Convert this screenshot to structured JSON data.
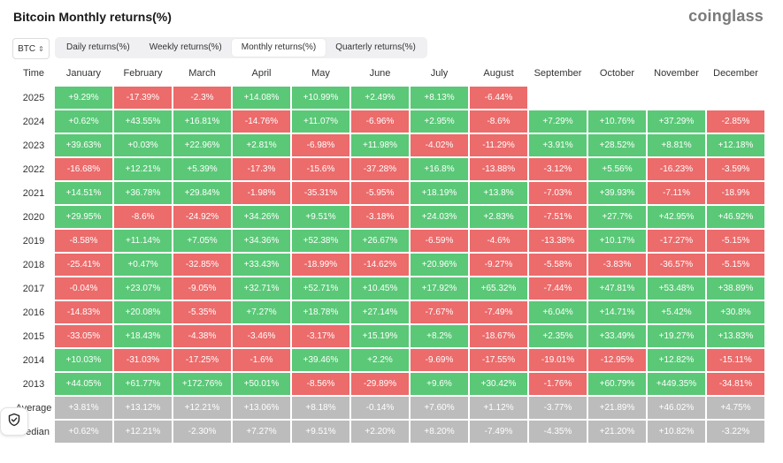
{
  "title": "Bitcoin Monthly returns(%)",
  "brand": "coinglass",
  "coin_select": {
    "value": "BTC",
    "icon": "chevron-updown-icon"
  },
  "tabs": [
    {
      "label": "Daily returns(%)",
      "active": false
    },
    {
      "label": "Weekly returns(%)",
      "active": false
    },
    {
      "label": "Monthly returns(%)",
      "active": true
    },
    {
      "label": "Quarterly returns(%)",
      "active": false
    }
  ],
  "colors": {
    "positive": "#5ac877",
    "negative": "#ec6b6b",
    "summary": "#bcbcbc"
  },
  "table": {
    "time_header": "Time",
    "months": [
      "January",
      "February",
      "March",
      "April",
      "May",
      "June",
      "July",
      "August",
      "September",
      "October",
      "November",
      "December"
    ],
    "rows": [
      {
        "year": "2025",
        "values": [
          "+9.29%",
          "-17.39%",
          "-2.3%",
          "+14.08%",
          "+10.99%",
          "+2.49%",
          "+8.13%",
          "-6.44%",
          "",
          "",
          "",
          ""
        ]
      },
      {
        "year": "2024",
        "values": [
          "+0.62%",
          "+43.55%",
          "+16.81%",
          "-14.76%",
          "+11.07%",
          "-6.96%",
          "+2.95%",
          "-8.6%",
          "+7.29%",
          "+10.76%",
          "+37.29%",
          "-2.85%"
        ]
      },
      {
        "year": "2023",
        "values": [
          "+39.63%",
          "+0.03%",
          "+22.96%",
          "+2.81%",
          "-6.98%",
          "+11.98%",
          "-4.02%",
          "-11.29%",
          "+3.91%",
          "+28.52%",
          "+8.81%",
          "+12.18%"
        ]
      },
      {
        "year": "2022",
        "values": [
          "-16.68%",
          "+12.21%",
          "+5.39%",
          "-17.3%",
          "-15.6%",
          "-37.28%",
          "+16.8%",
          "-13.88%",
          "-3.12%",
          "+5.56%",
          "-16.23%",
          "-3.59%"
        ]
      },
      {
        "year": "2021",
        "values": [
          "+14.51%",
          "+36.78%",
          "+29.84%",
          "-1.98%",
          "-35.31%",
          "-5.95%",
          "+18.19%",
          "+13.8%",
          "-7.03%",
          "+39.93%",
          "-7.11%",
          "-18.9%"
        ]
      },
      {
        "year": "2020",
        "values": [
          "+29.95%",
          "-8.6%",
          "-24.92%",
          "+34.26%",
          "+9.51%",
          "-3.18%",
          "+24.03%",
          "+2.83%",
          "-7.51%",
          "+27.7%",
          "+42.95%",
          "+46.92%"
        ]
      },
      {
        "year": "2019",
        "values": [
          "-8.58%",
          "+11.14%",
          "+7.05%",
          "+34.36%",
          "+52.38%",
          "+26.67%",
          "-6.59%",
          "-4.6%",
          "-13.38%",
          "+10.17%",
          "-17.27%",
          "-5.15%"
        ]
      },
      {
        "year": "2018",
        "values": [
          "-25.41%",
          "+0.47%",
          "-32.85%",
          "+33.43%",
          "-18.99%",
          "-14.62%",
          "+20.96%",
          "-9.27%",
          "-5.58%",
          "-3.83%",
          "-36.57%",
          "-5.15%"
        ]
      },
      {
        "year": "2017",
        "values": [
          "-0.04%",
          "+23.07%",
          "-9.05%",
          "+32.71%",
          "+52.71%",
          "+10.45%",
          "+17.92%",
          "+65.32%",
          "-7.44%",
          "+47.81%",
          "+53.48%",
          "+38.89%"
        ]
      },
      {
        "year": "2016",
        "values": [
          "-14.83%",
          "+20.08%",
          "-5.35%",
          "+7.27%",
          "+18.78%",
          "+27.14%",
          "-7.67%",
          "-7.49%",
          "+6.04%",
          "+14.71%",
          "+5.42%",
          "+30.8%"
        ]
      },
      {
        "year": "2015",
        "values": [
          "-33.05%",
          "+18.43%",
          "-4.38%",
          "-3.46%",
          "-3.17%",
          "+15.19%",
          "+8.2%",
          "-18.67%",
          "+2.35%",
          "+33.49%",
          "+19.27%",
          "+13.83%"
        ]
      },
      {
        "year": "2014",
        "values": [
          "+10.03%",
          "-31.03%",
          "-17.25%",
          "-1.6%",
          "+39.46%",
          "+2.2%",
          "-9.69%",
          "-17.55%",
          "-19.01%",
          "-12.95%",
          "+12.82%",
          "-15.11%"
        ]
      },
      {
        "year": "2013",
        "values": [
          "+44.05%",
          "+61.77%",
          "+172.76%",
          "+50.01%",
          "-8.56%",
          "-29.89%",
          "+9.6%",
          "+30.42%",
          "-1.76%",
          "+60.79%",
          "+449.35%",
          "-34.81%"
        ]
      }
    ],
    "summary": [
      {
        "label": "Average",
        "values": [
          "+3.81%",
          "+13.12%",
          "+12.21%",
          "+13.06%",
          "+8.18%",
          "-0.14%",
          "+7.60%",
          "+1.12%",
          "-3.77%",
          "+21.89%",
          "+46.02%",
          "+4.75%"
        ]
      },
      {
        "label": "Median",
        "values": [
          "+0.62%",
          "+12.21%",
          "-2.30%",
          "+7.27%",
          "+9.51%",
          "+2.20%",
          "+8.20%",
          "-7.49%",
          "-4.35%",
          "+21.20%",
          "+10.82%",
          "-3.22%"
        ]
      }
    ]
  },
  "floating_button": {
    "icon": "shield-check-icon"
  }
}
